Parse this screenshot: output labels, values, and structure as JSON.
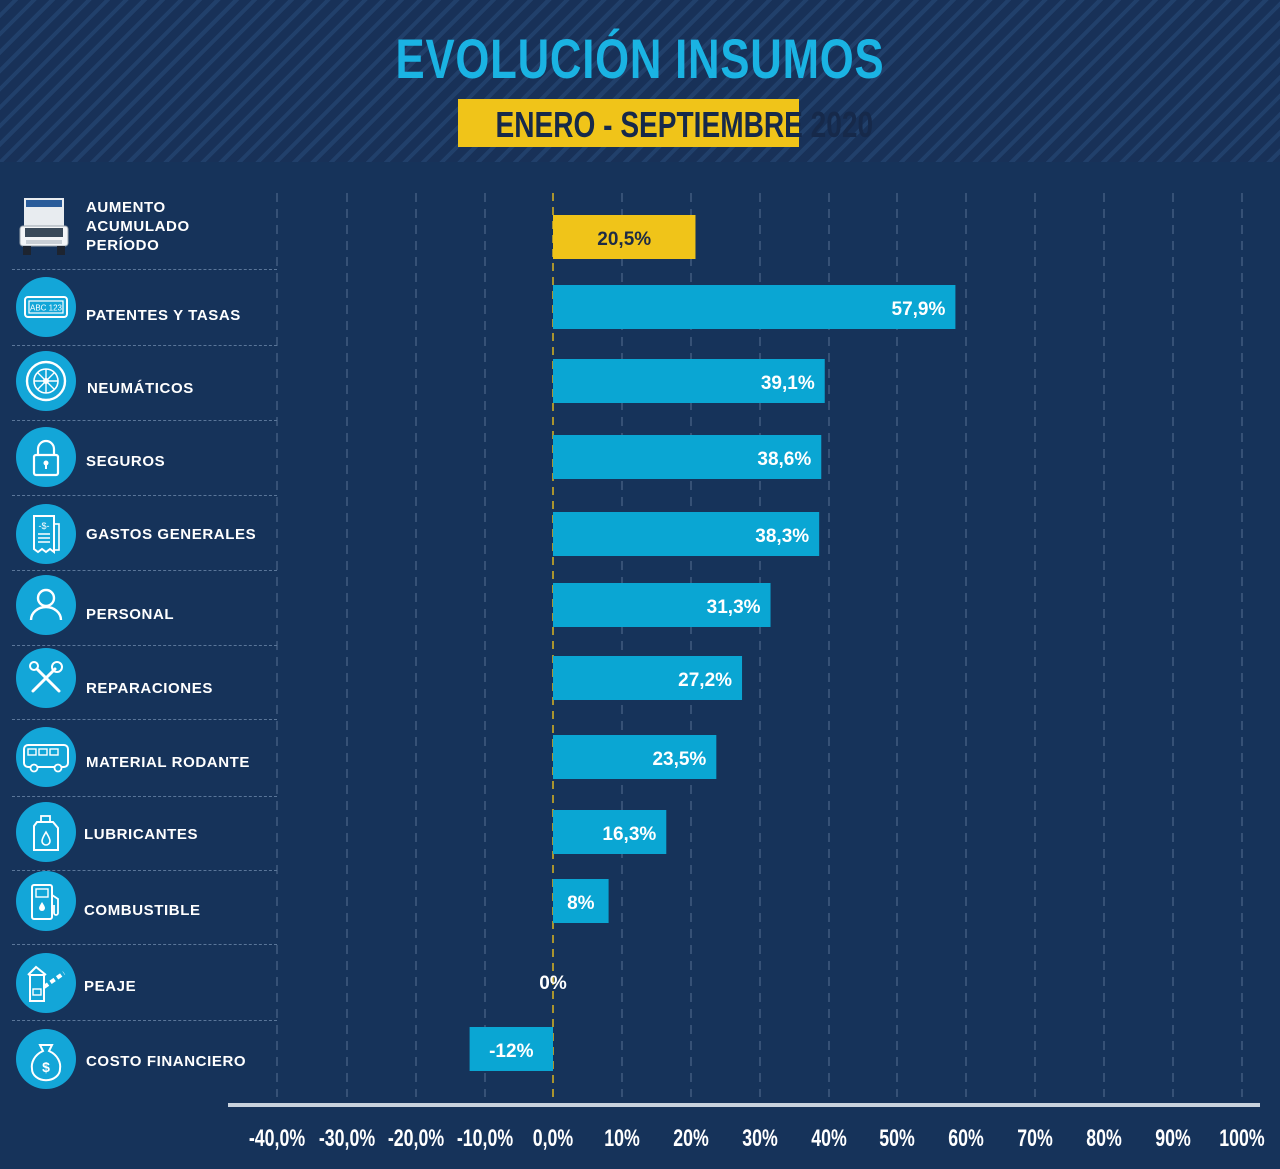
{
  "title": "EVOLUCIÓN INSUMOS",
  "subtitle": "ENERO - SEPTIEMBRE 2020",
  "colors": {
    "background": "#16335a",
    "title": "#1ab3e3",
    "highlight": "#f0c419",
    "bar": "#0aa6d3",
    "zero_tick": "#f0c419"
  },
  "chart_data": {
    "type": "bar",
    "orientation": "horizontal",
    "categories": [
      "AUMENTO\nACUMULADO\nPERÍODO",
      "PATENTES Y TASAS",
      "NEUMÁTICOS",
      "SEGUROS",
      "GASTOS GENERALES",
      "PERSONAL",
      "REPARACIONES",
      "MATERIAL RODANTE",
      "LUBRICANTES",
      "COMBUSTIBLE",
      "PEAJE",
      "COSTO FINANCIERO"
    ],
    "icons": [
      "truck-icon",
      "license-plate-icon",
      "tire-icon",
      "padlock-icon",
      "receipt-icon",
      "person-icon",
      "tools-icon",
      "bus-icon",
      "oil-can-icon",
      "fuel-pump-icon",
      "toll-booth-icon",
      "money-bag-icon"
    ],
    "values": [
      20.5,
      57.9,
      39.1,
      38.6,
      38.3,
      31.3,
      27.2,
      23.5,
      16.3,
      8,
      0,
      -12
    ],
    "value_labels": [
      "20,5%",
      "57,9%",
      "39,1%",
      "38,6%",
      "38,3%",
      "31,3%",
      "27,2%",
      "23,5%",
      "16,3%",
      "8%",
      "0%",
      "-12%"
    ],
    "highlight_index": 0,
    "x_ticks": [
      -40,
      -30,
      -20,
      -10,
      0,
      10,
      20,
      30,
      40,
      50,
      60,
      70,
      80,
      90,
      100
    ],
    "x_tick_labels": [
      "-40,0%",
      "-30,0%",
      "-20,0%",
      "-10,0%",
      "0,0%",
      "10%",
      "20%",
      "30%",
      "40%",
      "50%",
      "60%",
      "70%",
      "80%",
      "90%",
      "100%"
    ],
    "xlim": [
      -40,
      100
    ],
    "grid": true,
    "xlabel": "",
    "ylabel": ""
  }
}
